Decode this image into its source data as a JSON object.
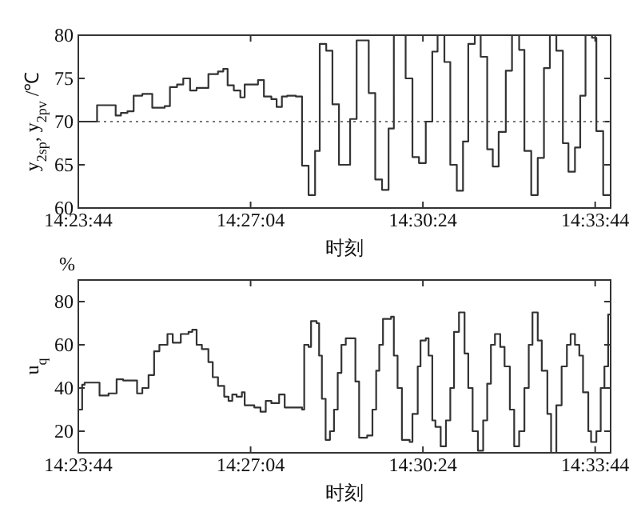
{
  "chart_data": [
    {
      "type": "step",
      "xlabel": "时刻",
      "ylabel": "y$_{2sp}$, y$_{2pv}$ /℃",
      "xlim": [
        14.39556,
        14.5672
      ],
      "ylim": [
        60,
        80
      ],
      "xticks": [
        {
          "value": 14.39556,
          "label": "14:23:44"
        },
        {
          "value": 14.45111,
          "label": "14:27:04"
        },
        {
          "value": 14.50667,
          "label": "14:30:24"
        },
        {
          "value": 14.56222,
          "label": "14:33:44"
        }
      ],
      "yticks": [
        60,
        65,
        70,
        75,
        80
      ],
      "grid": false,
      "line_style": "solid",
      "ref_lines": [
        {
          "axis": "y",
          "value": 70,
          "color": "#777777",
          "line_style": "dotted"
        }
      ],
      "series": [
        {
          "color": "#333333",
          "x": [
            14.39556,
            14.4016,
            14.4076,
            14.4093,
            14.4114,
            14.4134,
            14.4162,
            14.4194,
            14.4234,
            14.4251,
            14.4274,
            14.4294,
            14.4316,
            14.4337,
            14.4375,
            14.4406,
            14.4423,
            14.4437,
            14.4457,
            14.4478,
            14.4492,
            14.4535,
            14.4554,
            14.4578,
            14.4595,
            14.4612,
            14.4629,
            14.4657,
            14.4677,
            14.4698,
            14.4719,
            14.4734,
            14.4755,
            14.4775,
            14.4796,
            14.4832,
            14.4853,
            14.4892,
            14.4913,
            14.4935,
            14.4956,
            14.4973,
            14.5011,
            14.5033,
            14.5054,
            14.5076,
            14.5097,
            14.5114,
            14.5136,
            14.5155,
            14.5176,
            14.5196,
            14.5213,
            14.5234,
            14.5253,
            14.5274,
            14.5292,
            14.5311,
            14.5334,
            14.5354,
            14.5377,
            14.5394,
            14.5416,
            14.5437,
            14.5457,
            14.5476,
            14.5497,
            14.5518,
            14.5536,
            14.5557,
            14.5574,
            14.5591,
            14.5612,
            14.5626,
            14.5648,
            14.5671
          ],
          "values": [
            70,
            71.9,
            70.7,
            71.0,
            71.2,
            73.0,
            73.2,
            71.6,
            71.8,
            74.0,
            74.3,
            75.0,
            73.6,
            73.9,
            75.5,
            75.8,
            76.1,
            74.2,
            73.6,
            72.8,
            74.3,
            74.8,
            72.9,
            72.6,
            71.7,
            72.9,
            73.0,
            72.9,
            64.9,
            61.5,
            66.6,
            79.0,
            78.2,
            72.0,
            65.0,
            70.3,
            79.4,
            73.3,
            63.3,
            62.1,
            69.2,
            80,
            75.0,
            65.9,
            65.2,
            70.0,
            78.1,
            80,
            76.9,
            65.0,
            62.0,
            67.7,
            79.0,
            80,
            77.5,
            66.8,
            64.8,
            68.8,
            75.9,
            80,
            78.3,
            66.6,
            61.5,
            65.8,
            76.2,
            80,
            78.2,
            67.5,
            64.2,
            67.0,
            73.0,
            80,
            79.7,
            68.9,
            61.5,
            61.5
          ]
        }
      ]
    },
    {
      "type": "step",
      "xlabel": "时刻",
      "ylabel": "u$_{q}$",
      "annotations": [
        "%"
      ],
      "xlim": [
        14.39556,
        14.5672
      ],
      "ylim": [
        10,
        90
      ],
      "xticks": [
        {
          "value": 14.39556,
          "label": "14:23:44"
        },
        {
          "value": 14.45111,
          "label": "14:27:04"
        },
        {
          "value": 14.50667,
          "label": "14:30:24"
        },
        {
          "value": 14.56222,
          "label": "14:33:44"
        }
      ],
      "yticks": [
        20,
        40,
        60,
        80
      ],
      "grid": false,
      "line_style": "solid",
      "series": [
        {
          "color": "#333333",
          "x": [
            14.39556,
            14.3968,
            14.3976,
            14.4024,
            14.4053,
            14.4079,
            14.41,
            14.4145,
            14.4162,
            14.4182,
            14.42,
            14.4217,
            14.4243,
            14.426,
            14.4286,
            14.4311,
            14.4323,
            14.4337,
            14.4354,
            14.4375,
            14.4389,
            14.4406,
            14.4426,
            14.444,
            14.4452,
            14.4466,
            14.4483,
            14.4492,
            14.4523,
            14.4543,
            14.456,
            14.4578,
            14.4603,
            14.4621,
            14.4677,
            14.4684,
            14.4698,
            14.4706,
            14.4724,
            14.4732,
            14.4741,
            14.4753,
            14.4767,
            14.478,
            14.4792,
            14.4804,
            14.4818,
            14.4849,
            14.4861,
            14.4887,
            14.4904,
            14.4916,
            14.4926,
            14.4938,
            14.4964,
            14.4973,
            14.4985,
            14.4999,
            14.5024,
            14.5033,
            14.505,
            14.5059,
            14.5076,
            14.5085,
            14.5097,
            14.5107,
            14.5124,
            14.5141,
            14.5155,
            14.5167,
            14.5183,
            14.5201,
            14.5213,
            14.5227,
            14.5244,
            14.5261,
            14.5274,
            14.5286,
            14.5299,
            14.5316,
            14.533,
            14.5347,
            14.5361,
            14.5377,
            14.5394,
            14.5408,
            14.542,
            14.5437,
            14.545,
            14.5468,
            14.548,
            14.5497,
            14.5514,
            14.5531,
            14.5543,
            14.5557,
            14.5571,
            14.5583,
            14.56,
            14.5609,
            14.5626,
            14.564,
            14.5652,
            14.5664,
            14.5671
          ],
          "values": [
            30,
            41.5,
            42.5,
            36.5,
            37.5,
            44,
            43.5,
            37.5,
            40,
            46,
            57,
            60,
            65,
            61,
            65,
            66,
            67,
            60,
            58,
            52,
            45,
            41,
            36,
            34,
            37,
            36,
            38,
            32,
            31,
            29,
            34,
            33,
            37,
            31,
            30,
            60,
            59,
            71,
            70,
            55,
            35,
            16,
            20,
            30,
            47,
            60,
            63,
            43,
            17,
            18,
            30,
            48,
            60,
            72,
            73,
            55,
            40,
            16,
            15,
            28,
            50,
            62,
            63,
            55,
            25,
            22,
            13,
            25,
            40,
            66,
            75,
            56,
            40,
            20,
            11,
            25,
            42,
            60,
            65,
            59,
            50,
            30,
            13,
            20,
            40,
            60,
            75,
            62,
            48,
            28,
            10,
            32,
            50,
            60,
            65,
            60,
            55,
            38,
            20,
            15,
            20,
            40,
            50,
            74,
            74
          ]
        }
      ]
    }
  ]
}
